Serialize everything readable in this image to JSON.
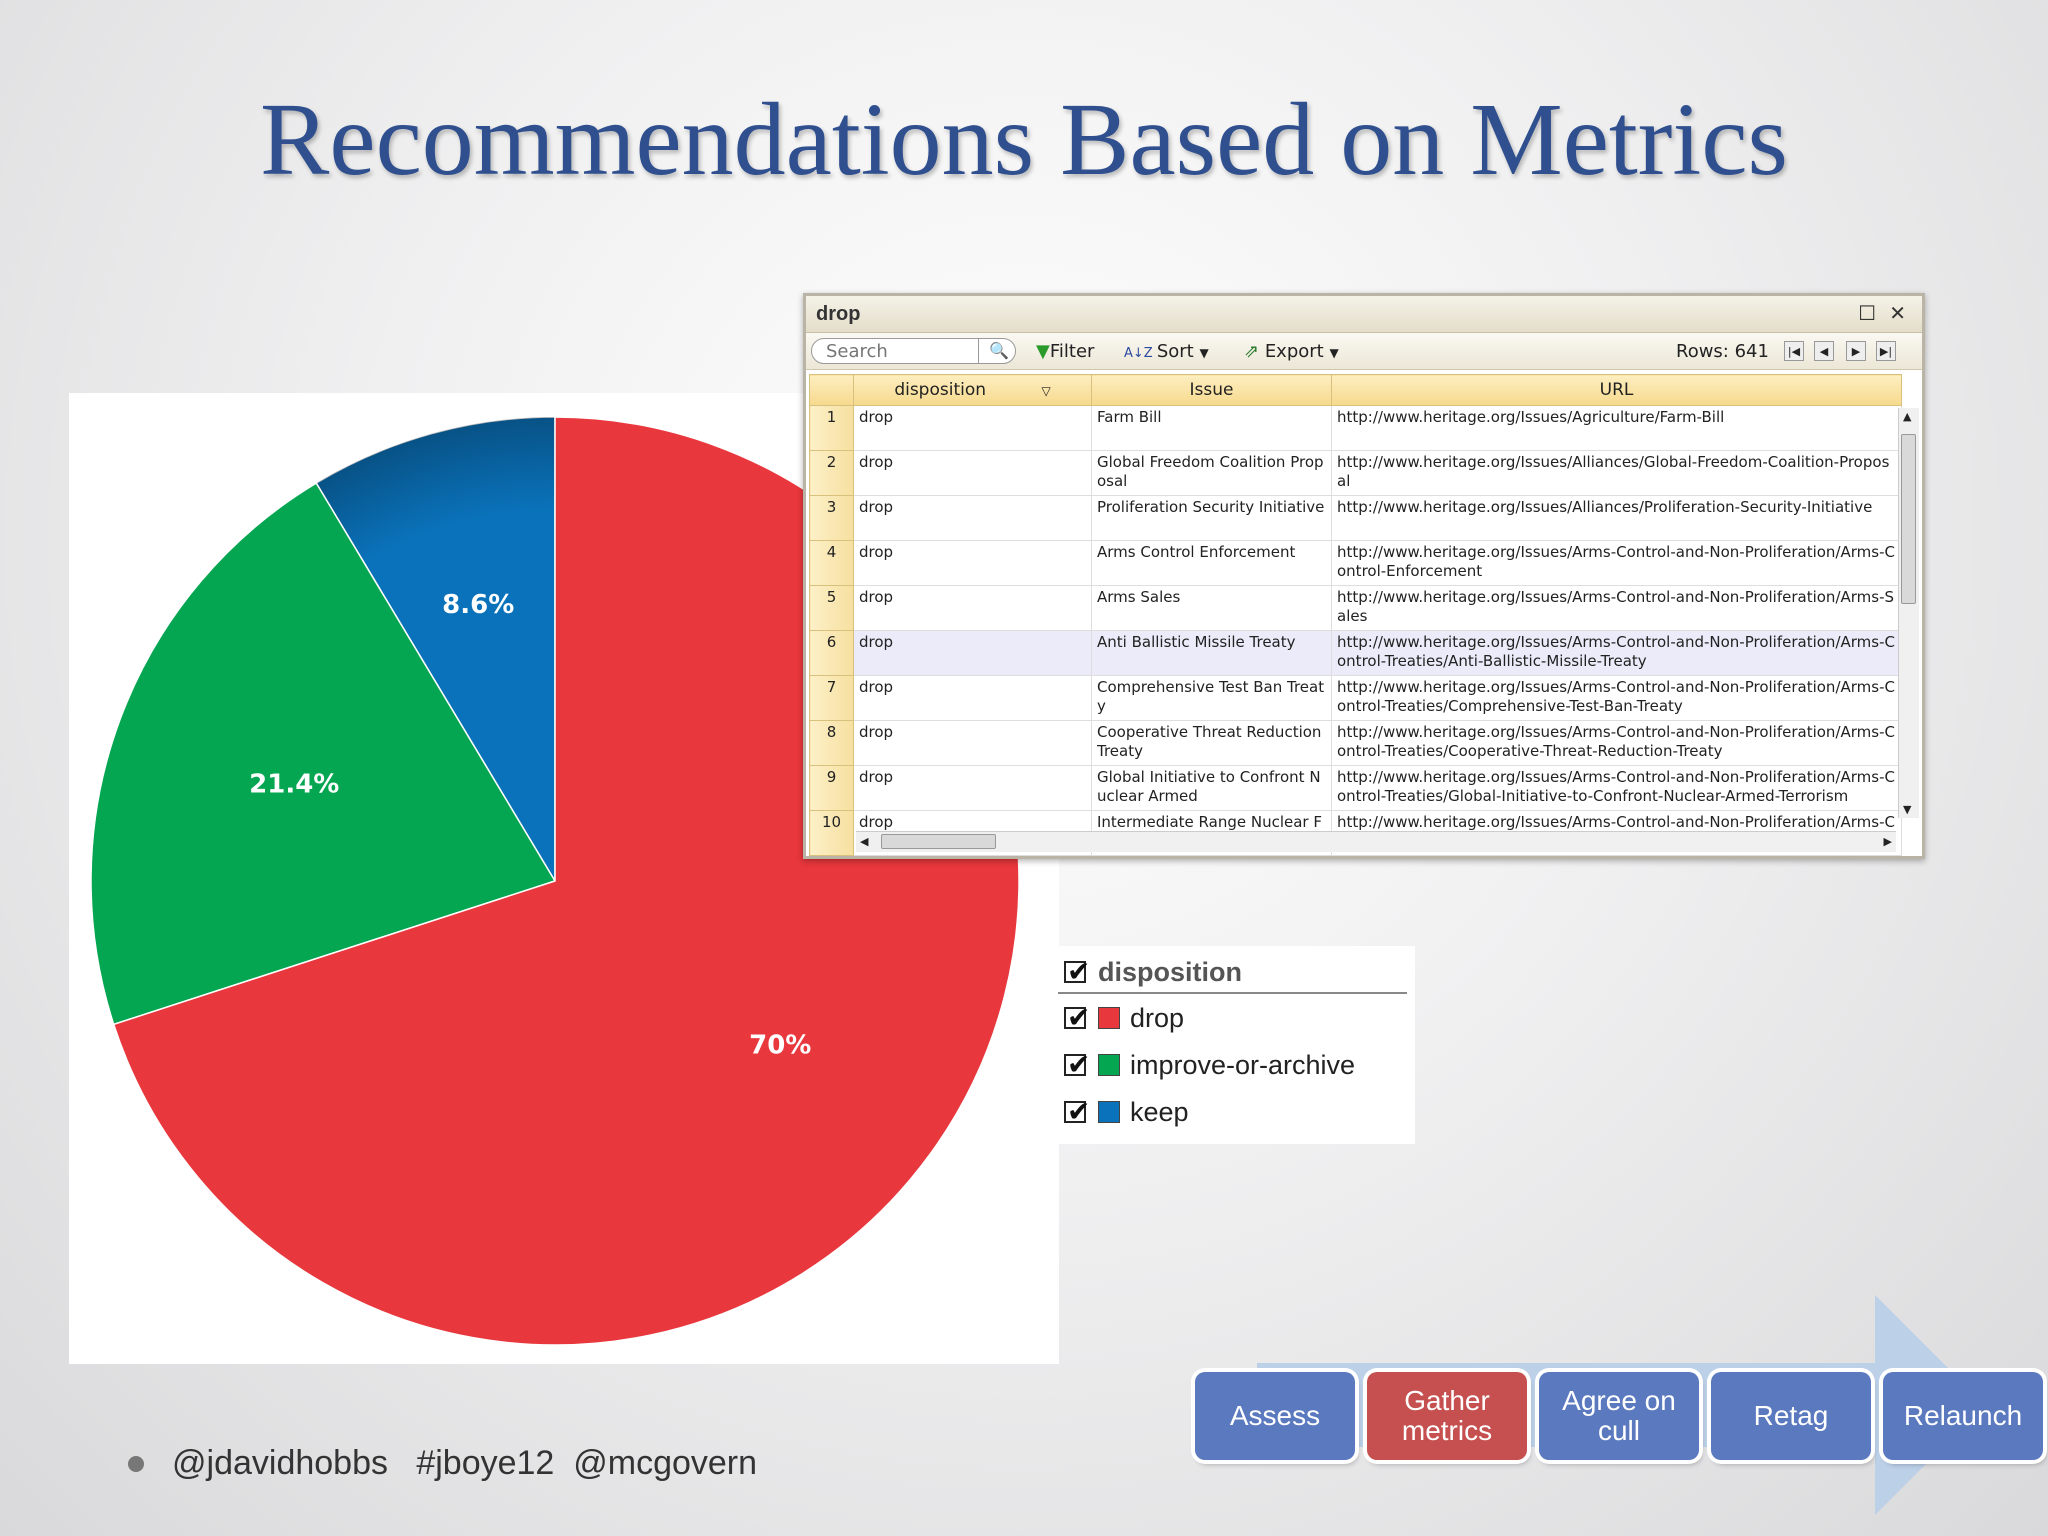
{
  "slide": {
    "title": "Recommendations Based on Metrics",
    "footer": "@jdavidhobbs   #jboye12  @mcgovern"
  },
  "chart_data": {
    "type": "pie",
    "title": "",
    "slices": [
      {
        "label": "drop",
        "value": 70,
        "display": "70%",
        "color": "#e8373d"
      },
      {
        "label": "improve-or-archive",
        "value": 21.4,
        "display": "21.4%",
        "color": "#05a651"
      },
      {
        "label": "keep",
        "value": 8.6,
        "display": "8.6%",
        "color": "#0a72ba"
      }
    ],
    "legend": {
      "title": "disposition",
      "placement": "right",
      "items": [
        "drop",
        "improve-or-archive",
        "keep"
      ]
    }
  },
  "grid_window": {
    "title": "drop",
    "toolbar": {
      "search_placeholder": "Search",
      "filter": "Filter",
      "sort": "Sort",
      "export": "Export",
      "rows": "Rows: 641"
    },
    "columns": [
      "disposition",
      "Issue",
      "URL"
    ],
    "rows": [
      {
        "n": "1",
        "disposition": "drop",
        "issue": "Farm Bill",
        "url": "http://www.heritage.org/Issues/Agriculture/Farm-Bill"
      },
      {
        "n": "2",
        "disposition": "drop",
        "issue": "Global Freedom Coalition Proposal",
        "url": "http://www.heritage.org/Issues/Alliances/Global-Freedom-Coalition-Proposal"
      },
      {
        "n": "3",
        "disposition": "drop",
        "issue": "Proliferation Security Initiative",
        "url": "http://www.heritage.org/Issues/Alliances/Proliferation-Security-Initiative"
      },
      {
        "n": "4",
        "disposition": "drop",
        "issue": "Arms Control Enforcement",
        "url": "http://www.heritage.org/Issues/Arms-Control-and-Non-Proliferation/Arms-Control-Enforcement"
      },
      {
        "n": "5",
        "disposition": "drop",
        "issue": "Arms Sales",
        "url": "http://www.heritage.org/Issues/Arms-Control-and-Non-Proliferation/Arms-Sales"
      },
      {
        "n": "6",
        "disposition": "drop",
        "issue": "Anti Ballistic Missile Treaty",
        "url": "http://www.heritage.org/Issues/Arms-Control-and-Non-Proliferation/Arms-Control-Treaties/Anti-Ballistic-Missile-Treaty"
      },
      {
        "n": "7",
        "disposition": "drop",
        "issue": "Comprehensive Test Ban Treaty",
        "url": "http://www.heritage.org/Issues/Arms-Control-and-Non-Proliferation/Arms-Control-Treaties/Comprehensive-Test-Ban-Treaty"
      },
      {
        "n": "8",
        "disposition": "drop",
        "issue": "Cooperative Threat Reduction Treaty",
        "url": "http://www.heritage.org/Issues/Arms-Control-and-Non-Proliferation/Arms-Control-Treaties/Cooperative-Threat-Reduction-Treaty"
      },
      {
        "n": "9",
        "disposition": "drop",
        "issue": "Global Initiative to Confront Nuclear Armed",
        "url": "http://www.heritage.org/Issues/Arms-Control-and-Non-Proliferation/Arms-Control-Treaties/Global-Initiative-to-Confront-Nuclear-Armed-Terrorism"
      },
      {
        "n": "10",
        "disposition": "drop",
        "issue": "Intermediate Range Nuclear Forces Treaty",
        "url": "http://www.heritage.org/Issues/Arms-Control-and-Non-Proliferation/Arms-Control-Treaties/Intermediate-Range-Nuclear-Forces-Treaty"
      }
    ]
  },
  "process": {
    "steps": [
      {
        "label": "Assess",
        "color": "#5b79bf"
      },
      {
        "label": "Gather metrics",
        "color": "#c5504f"
      },
      {
        "label": "Agree on cull",
        "color": "#5b79bf"
      },
      {
        "label": "Retag",
        "color": "#5b79bf"
      },
      {
        "label": "Relaunch",
        "color": "#5b79bf"
      }
    ]
  }
}
